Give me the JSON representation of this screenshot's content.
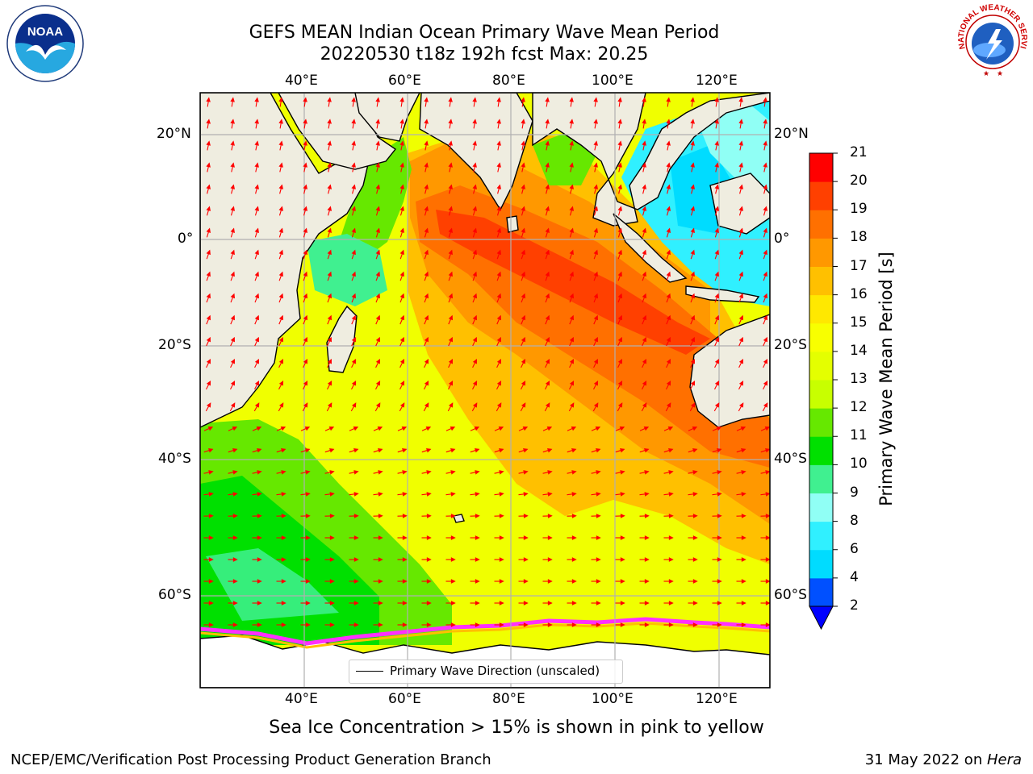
{
  "figure": {
    "title_line1": "GEFS MEAN Indian Ocean Primary Wave Mean Period",
    "title_line2": "20220530 t18z 192h fcst   Max: 20.25",
    "note": "Sea Ice Concentration > 15% is shown in pink to yellow",
    "credit": "NCEP/EMC/Verification Post Processing Product Generation Branch",
    "date_prefix": "31 May 2022 on ",
    "date_machine": "Hera"
  },
  "logos": {
    "noaa": {
      "name": "noaa-logo",
      "text": "NOAA"
    },
    "nws": {
      "name": "nws-logo",
      "text": "NATIONAL WEATHER SERVICE"
    }
  },
  "axes": {
    "lon_ticks": [
      "40°E",
      "60°E",
      "80°E",
      "100°E",
      "120°E"
    ],
    "lat_ticks": [
      "20°N",
      "0°",
      "20°S",
      "40°S",
      "60°S"
    ],
    "lon_range": [
      20,
      129
    ],
    "lat_range": [
      -76,
      28
    ],
    "grid": true
  },
  "colorbar": {
    "title": "Primary Wave Mean Period [s]",
    "levels": [
      2,
      4,
      6,
      8,
      9,
      10,
      11,
      12,
      13,
      14,
      15,
      16,
      17,
      18,
      19,
      20,
      21
    ],
    "colors": [
      "#0050ff",
      "#00dcff",
      "#30f0ff",
      "#90fff5",
      "#40f090",
      "#00e000",
      "#66e800",
      "#c8ff00",
      "#e4ff00",
      "#f8ff00",
      "#ffe800",
      "#ffc000",
      "#ff9800",
      "#ff7000",
      "#ff4000",
      "#ff0000"
    ],
    "under_color": "#0000ff"
  },
  "legend": {
    "label": "Primary Wave Direction (unscaled)"
  },
  "map_data": {
    "type": "filled_contour_map",
    "variable": "Primary Wave Mean Period",
    "units": "s",
    "max_value": 20.25,
    "vector_color": "#ff0000",
    "land_color": "#efede0",
    "ice_color": "#ffffff",
    "ice_edge_colors": [
      "#ff30ff",
      "#ffc000",
      "#ffff00"
    ]
  }
}
